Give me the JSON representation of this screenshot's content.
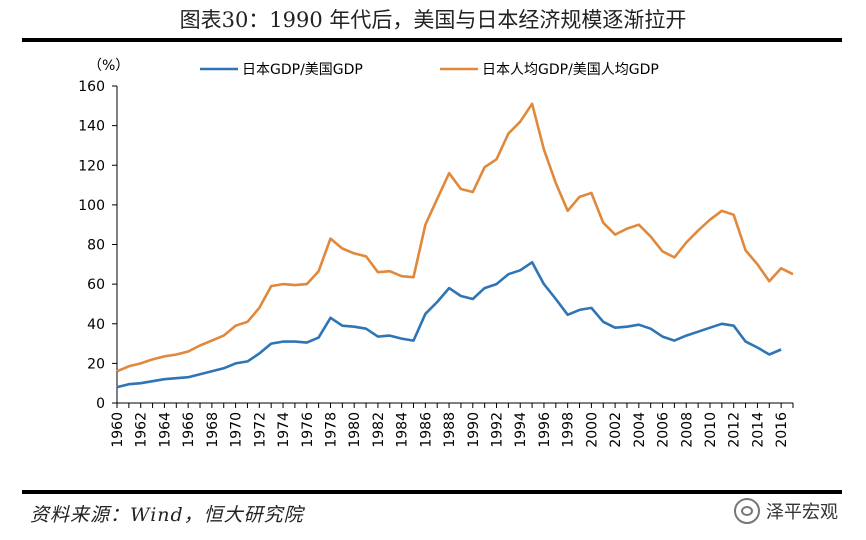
{
  "title": "图表30：1990 年代后，美国与日本经济规模逐渐拉开",
  "source": "资料来源：Wind，恒大研究院",
  "watermark": "泽平宏观",
  "chart_data": {
    "type": "line",
    "title": "图表30：1990 年代后，美国与日本经济规模逐渐拉开",
    "ylabel": "（%）",
    "xlabel": "",
    "ylim": [
      0,
      160
    ],
    "yticks": [
      0,
      20,
      40,
      60,
      80,
      100,
      120,
      140,
      160
    ],
    "xlim": [
      1960,
      2017
    ],
    "xticks": [
      1960,
      1962,
      1964,
      1966,
      1968,
      1970,
      1972,
      1974,
      1976,
      1978,
      1980,
      1982,
      1984,
      1986,
      1988,
      1990,
      1992,
      1994,
      1996,
      1998,
      2000,
      2002,
      2004,
      2006,
      2008,
      2010,
      2012,
      2014,
      2016
    ],
    "legend_position": "top",
    "series": [
      {
        "name": "日本GDP/美国GDP",
        "color": "#2E75B6",
        "x": [
          1960,
          1961,
          1962,
          1963,
          1964,
          1965,
          1966,
          1967,
          1968,
          1969,
          1970,
          1971,
          1972,
          1973,
          1974,
          1975,
          1976,
          1977,
          1978,
          1979,
          1980,
          1981,
          1982,
          1983,
          1984,
          1985,
          1986,
          1987,
          1988,
          1989,
          1990,
          1991,
          1992,
          1993,
          1994,
          1995,
          1996,
          1997,
          1998,
          1999,
          2000,
          2001,
          2002,
          2003,
          2004,
          2005,
          2006,
          2007,
          2008,
          2009,
          2010,
          2011,
          2012,
          2013,
          2014,
          2015,
          2016
        ],
        "values": [
          8,
          9.5,
          10,
          11,
          12,
          12.5,
          13,
          14.5,
          16,
          17.5,
          20,
          21,
          25,
          30,
          31,
          31,
          30.5,
          33,
          43,
          39,
          38.5,
          37.5,
          33.5,
          34,
          32.5,
          31.5,
          45,
          51,
          58,
          54,
          52.5,
          58,
          60,
          65,
          67,
          71,
          60,
          52.5,
          44.5,
          47,
          48,
          41,
          38,
          38.5,
          39.5,
          37.5,
          33.5,
          31.5,
          34,
          36,
          38,
          40,
          39,
          31,
          28,
          24.5,
          27
        ]
      },
      {
        "name": "日本人均GDP/美国人均GDP",
        "color": "#E0883C",
        "x": [
          1960,
          1961,
          1962,
          1963,
          1964,
          1965,
          1966,
          1967,
          1968,
          1969,
          1970,
          1971,
          1972,
          1973,
          1974,
          1975,
          1976,
          1977,
          1978,
          1979,
          1980,
          1981,
          1982,
          1983,
          1984,
          1985,
          1986,
          1987,
          1988,
          1989,
          1990,
          1991,
          1992,
          1993,
          1994,
          1995,
          1996,
          1997,
          1998,
          1999,
          2000,
          2001,
          2002,
          2003,
          2004,
          2005,
          2006,
          2007,
          2008,
          2009,
          2010,
          2011,
          2012,
          2013,
          2014,
          2015,
          2016,
          2017
        ],
        "values": [
          16,
          18.5,
          20,
          22,
          23.5,
          24.5,
          26,
          29,
          31.5,
          34,
          39,
          41,
          48,
          59,
          60,
          59.5,
          60,
          66.5,
          83,
          78,
          75.5,
          74,
          66,
          66.5,
          64,
          63.5,
          90,
          103,
          116,
          108,
          106.5,
          119,
          123,
          136,
          142,
          151,
          128,
          111,
          97,
          104,
          106,
          91,
          85,
          88,
          90,
          84,
          76.5,
          73.5,
          81,
          87,
          92.5,
          97,
          95,
          77,
          70,
          61.5,
          68,
          65
        ]
      }
    ]
  }
}
